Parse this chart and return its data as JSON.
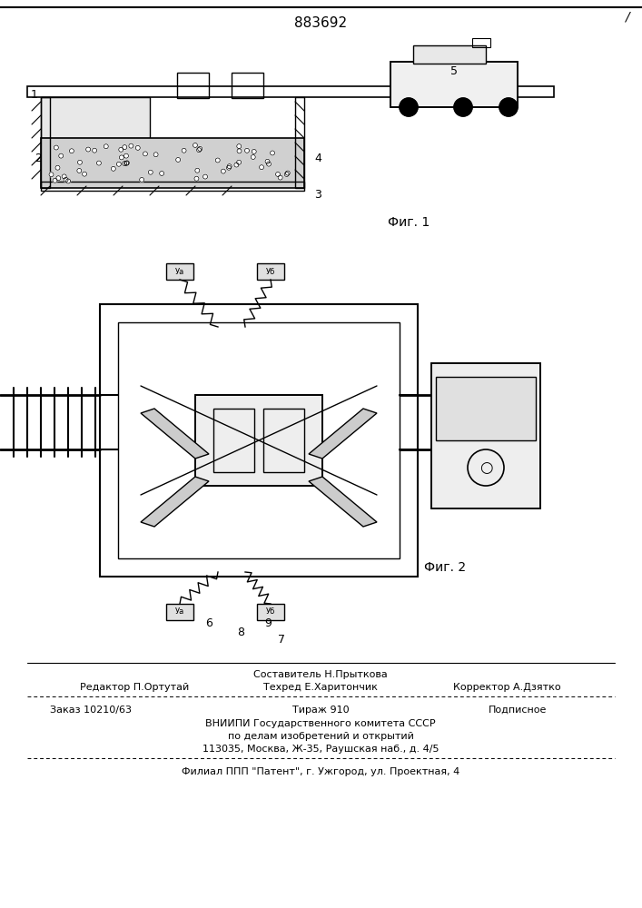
{
  "patent_number": "883692",
  "fig1_label": "Фиг. 1",
  "fig2_label": "Фиг. 2",
  "bg_color": "#ffffff",
  "line_color": "#000000",
  "footer_lines": [
    "Составитель Н.Прыткова",
    "Редактор П.Ортутай    Техред Е.Харитончик    Корректор А.Дзятко",
    "Заказ 10210/63        Тираж 910               Подписное",
    "ВНИИПИ Государственного комитета СССР",
    "по делам изобретений и открытий",
    "113035, Москва, Ж-35, Раушская наб., д. 4/5",
    "Филиал ППП \"Патент\", г. Ужгород, ул. Проектная, 4"
  ],
  "slash_mark": "/",
  "fig_width": 7.07,
  "fig_height": 10.0
}
